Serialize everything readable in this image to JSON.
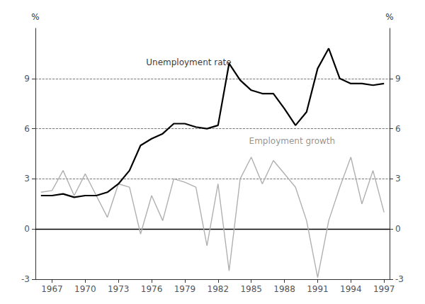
{
  "chart_data": {
    "type": "line",
    "x": [
      1966,
      1967,
      1968,
      1969,
      1970,
      1971,
      1972,
      1973,
      1974,
      1975,
      1976,
      1977,
      1978,
      1979,
      1980,
      1981,
      1982,
      1983,
      1984,
      1985,
      1986,
      1987,
      1988,
      1989,
      1990,
      1991,
      1992,
      1993,
      1994,
      1995,
      1996,
      1997
    ],
    "series": [
      {
        "color": "#000000",
        "values": [
          2.0,
          2.0,
          2.1,
          1.9,
          2.0,
          2.0,
          2.2,
          2.7,
          3.5,
          5.0,
          5.4,
          5.7,
          6.3,
          6.3,
          6.1,
          6.0,
          6.2,
          9.9,
          8.9,
          8.3,
          8.1,
          8.1,
          7.2,
          6.2,
          7.0,
          9.6,
          10.8,
          9.0,
          8.7,
          8.7,
          8.6,
          8.7
        ]
      },
      {
        "color": "#b0b0b0",
        "values": [
          2.2,
          2.3,
          3.5,
          2.0,
          3.3,
          2.0,
          0.7,
          2.7,
          2.5,
          -0.3,
          2.0,
          0.5,
          3.0,
          2.8,
          2.5,
          -1.0,
          2.7,
          -2.5,
          3.0,
          4.3,
          2.7,
          4.1,
          3.3,
          2.5,
          0.5,
          -2.9,
          0.5,
          2.5,
          4.3,
          1.5,
          3.5,
          1.0
        ]
      }
    ],
    "xlim": [
      1965.5,
      1997.5
    ],
    "xticks": [
      1967,
      1970,
      1973,
      1976,
      1979,
      1982,
      1985,
      1988,
      1991,
      1994,
      1997
    ],
    "ylim": [
      -3,
      12
    ],
    "yticks": [
      -3,
      0,
      3,
      6,
      9
    ],
    "y2lim": [
      -3,
      12
    ],
    "y2ticks": [
      -3,
      0,
      3,
      6,
      9
    ],
    "ylabel": "%",
    "y2label": "%",
    "grid": false,
    "reference_lines": [
      {
        "y": 0,
        "line_style": "solid"
      },
      {
        "y": 9,
        "line_style": "dashed"
      },
      {
        "y": 6,
        "line_style": "dashed"
      },
      {
        "y": 3,
        "line_style": "dashed"
      }
    ],
    "annotations": [
      {
        "text": "Unemployment rate",
        "x": 1975.5,
        "y": 9.7,
        "color": "#000000"
      },
      {
        "text": "Employment growth",
        "x": 1984.8,
        "y": 5.0,
        "color": "#777777"
      }
    ]
  }
}
